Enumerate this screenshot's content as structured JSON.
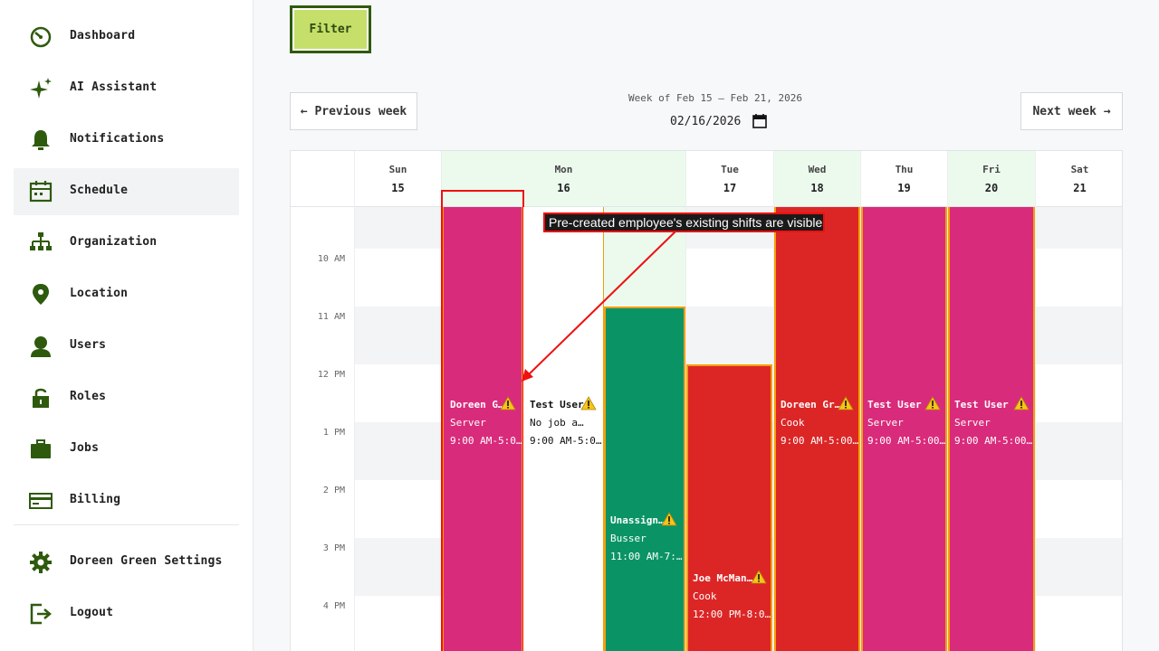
{
  "sidebar": {
    "items": [
      {
        "label": "Dashboard",
        "icon": "dashboard-icon",
        "active": false
      },
      {
        "label": "AI Assistant",
        "icon": "sparkle-icon",
        "active": false
      },
      {
        "label": "Notifications",
        "icon": "bell-icon",
        "active": false
      },
      {
        "label": "Schedule",
        "icon": "calendar-icon",
        "active": true
      },
      {
        "label": "Organization",
        "icon": "org-chart-icon",
        "active": false
      },
      {
        "label": "Location",
        "icon": "location-pin-icon",
        "active": false
      },
      {
        "label": "Users",
        "icon": "user-icon",
        "active": false
      },
      {
        "label": "Roles",
        "icon": "lock-icon",
        "active": false
      },
      {
        "label": "Jobs",
        "icon": "briefcase-icon",
        "active": false
      },
      {
        "label": "Billing",
        "icon": "credit-card-icon",
        "active": false
      }
    ],
    "footer": [
      {
        "label": "Doreen Green Settings",
        "icon": "gear-icon"
      },
      {
        "label": "Logout",
        "icon": "logout-icon"
      }
    ]
  },
  "toolbar": {
    "filter_label": "Filter",
    "prev_label": "← Previous week",
    "next_label": "Next week →",
    "week_title": "Week of Feb 15 – Feb 21, 2026",
    "date_value": "02/16/2026"
  },
  "calendar": {
    "days": [
      {
        "name": "Sun",
        "num": "15",
        "highlight": false
      },
      {
        "name": "Mon",
        "num": "16",
        "highlight": true
      },
      {
        "name": "Tue",
        "num": "17",
        "highlight": false
      },
      {
        "name": "Wed",
        "num": "18",
        "highlight": true
      },
      {
        "name": "Thu",
        "num": "19",
        "highlight": false
      },
      {
        "name": "Fri",
        "num": "20",
        "highlight": true
      },
      {
        "name": "Sat",
        "num": "21",
        "highlight": false
      }
    ],
    "times": [
      "10 AM",
      "11 AM",
      "12 PM",
      "1 PM",
      "2 PM",
      "3 PM",
      "4 PM"
    ],
    "shifts": [
      {
        "name": "Doreen G…",
        "job": "Server",
        "time": "9:00 AM-5:0…",
        "color": "#d92b7b"
      },
      {
        "name": "Test User",
        "job": "No job a…",
        "time": "9:00 AM-5:0…",
        "color": "#ffffff"
      },
      {
        "name": "Unassign…",
        "job": "Busser",
        "time": "11:00 AM-7:…",
        "color": "#0a9466"
      },
      {
        "name": "Joe McMan…",
        "job": "Cook",
        "time": "12:00 PM-8:0…",
        "color": "#dc2626"
      },
      {
        "name": "Doreen Gr…",
        "job": "Cook",
        "time": "9:00 AM-5:00…",
        "color": "#dc2626"
      },
      {
        "name": "Test User",
        "job": "Server",
        "time": "9:00 AM-5:00…",
        "color": "#d92b7b"
      },
      {
        "name": "Test User",
        "job": "Server",
        "time": "9:00 AM-5:00…",
        "color": "#d92b7b"
      }
    ]
  },
  "annotation": {
    "text": "Pre-created employee's existing shifts are visible"
  },
  "colors": {
    "accent": "#c5df6a",
    "accent_dark": "#2e5a0e",
    "highlight": "#ecfaee",
    "warning": "#f5c518"
  }
}
